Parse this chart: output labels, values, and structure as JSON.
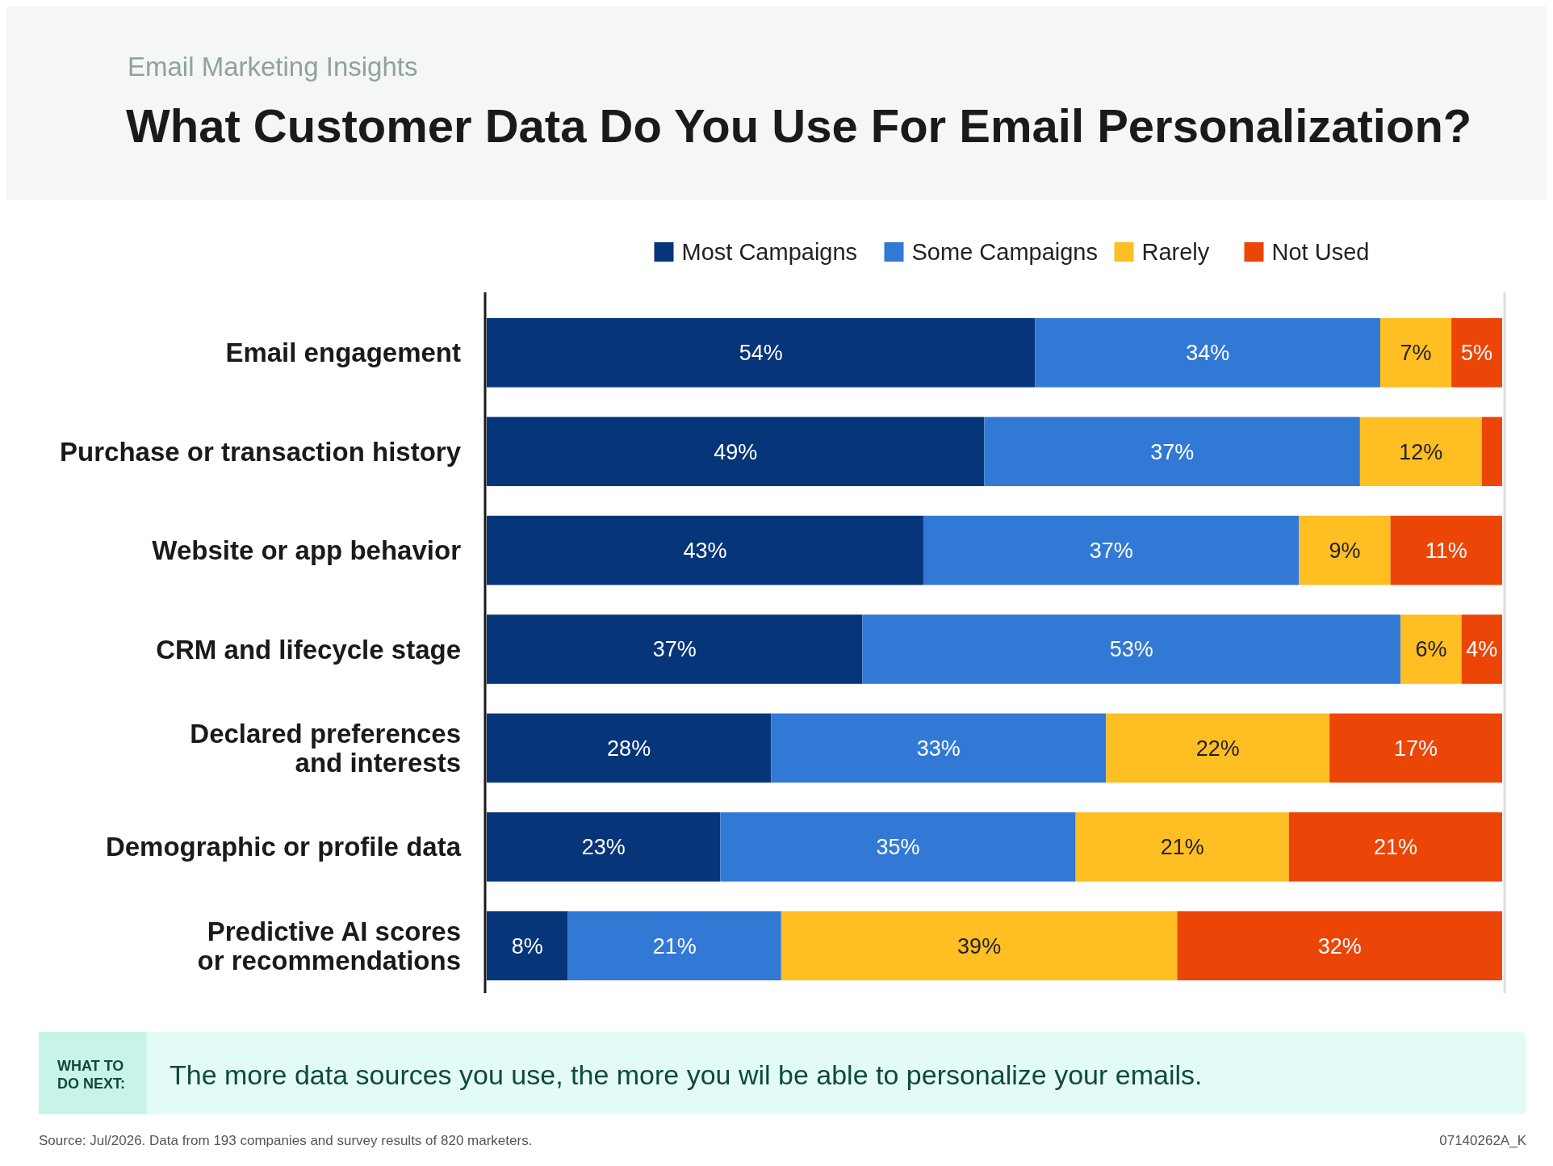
{
  "chart_data": {
    "type": "bar",
    "orientation": "horizontal",
    "stacked": true,
    "subtitle": "Email Marketing Insights",
    "title": "What Customer Data Do You Use For Email Personalization?",
    "categories": [
      "Email engagement",
      "Purchase or transaction history",
      "Website or app behavior",
      "CRM and lifecycle stage",
      "Declared preferences and interests",
      "Demographic or profile data",
      "Predictive AI scores or recommendations"
    ],
    "series": [
      {
        "name": "Most Campaigns",
        "color": "#06357a",
        "values": [
          54,
          49,
          43,
          37,
          28,
          23,
          8
        ],
        "value_labels": [
          "54%",
          "49%",
          "43%",
          "37%",
          "28%",
          "23%",
          "8%"
        ]
      },
      {
        "name": "Some Campaigns",
        "color": "#3279d6",
        "values": [
          34,
          37,
          37,
          53,
          33,
          35,
          21
        ],
        "value_labels": [
          "34%",
          "37%",
          "37%",
          "53%",
          "33%",
          "35%",
          "21%"
        ]
      },
      {
        "name": "Rarely",
        "color": "#ffbe22",
        "values": [
          7,
          12,
          9,
          6,
          22,
          21,
          39
        ],
        "value_labels": [
          "7%",
          "12%",
          "9%",
          "6%",
          "22%",
          "21%",
          "39%"
        ]
      },
      {
        "name": "Not Used",
        "color": "#ec4508",
        "values": [
          5,
          2,
          11,
          4,
          17,
          21,
          32
        ],
        "value_labels": [
          "5%",
          null,
          "11%",
          "4%",
          "17%",
          "21%",
          "32%"
        ]
      }
    ],
    "xlim": [
      0,
      100
    ],
    "tick_labels": "y",
    "legend": "top",
    "annotations": [
      "WHAT TO DO NEXT:",
      "The more data sources you use, the more you wil be able to personalize your emails.",
      "Source: Jul/2026. Data from 193 companies and survey results of 820 marketers.",
      "07140262A_K"
    ]
  }
}
